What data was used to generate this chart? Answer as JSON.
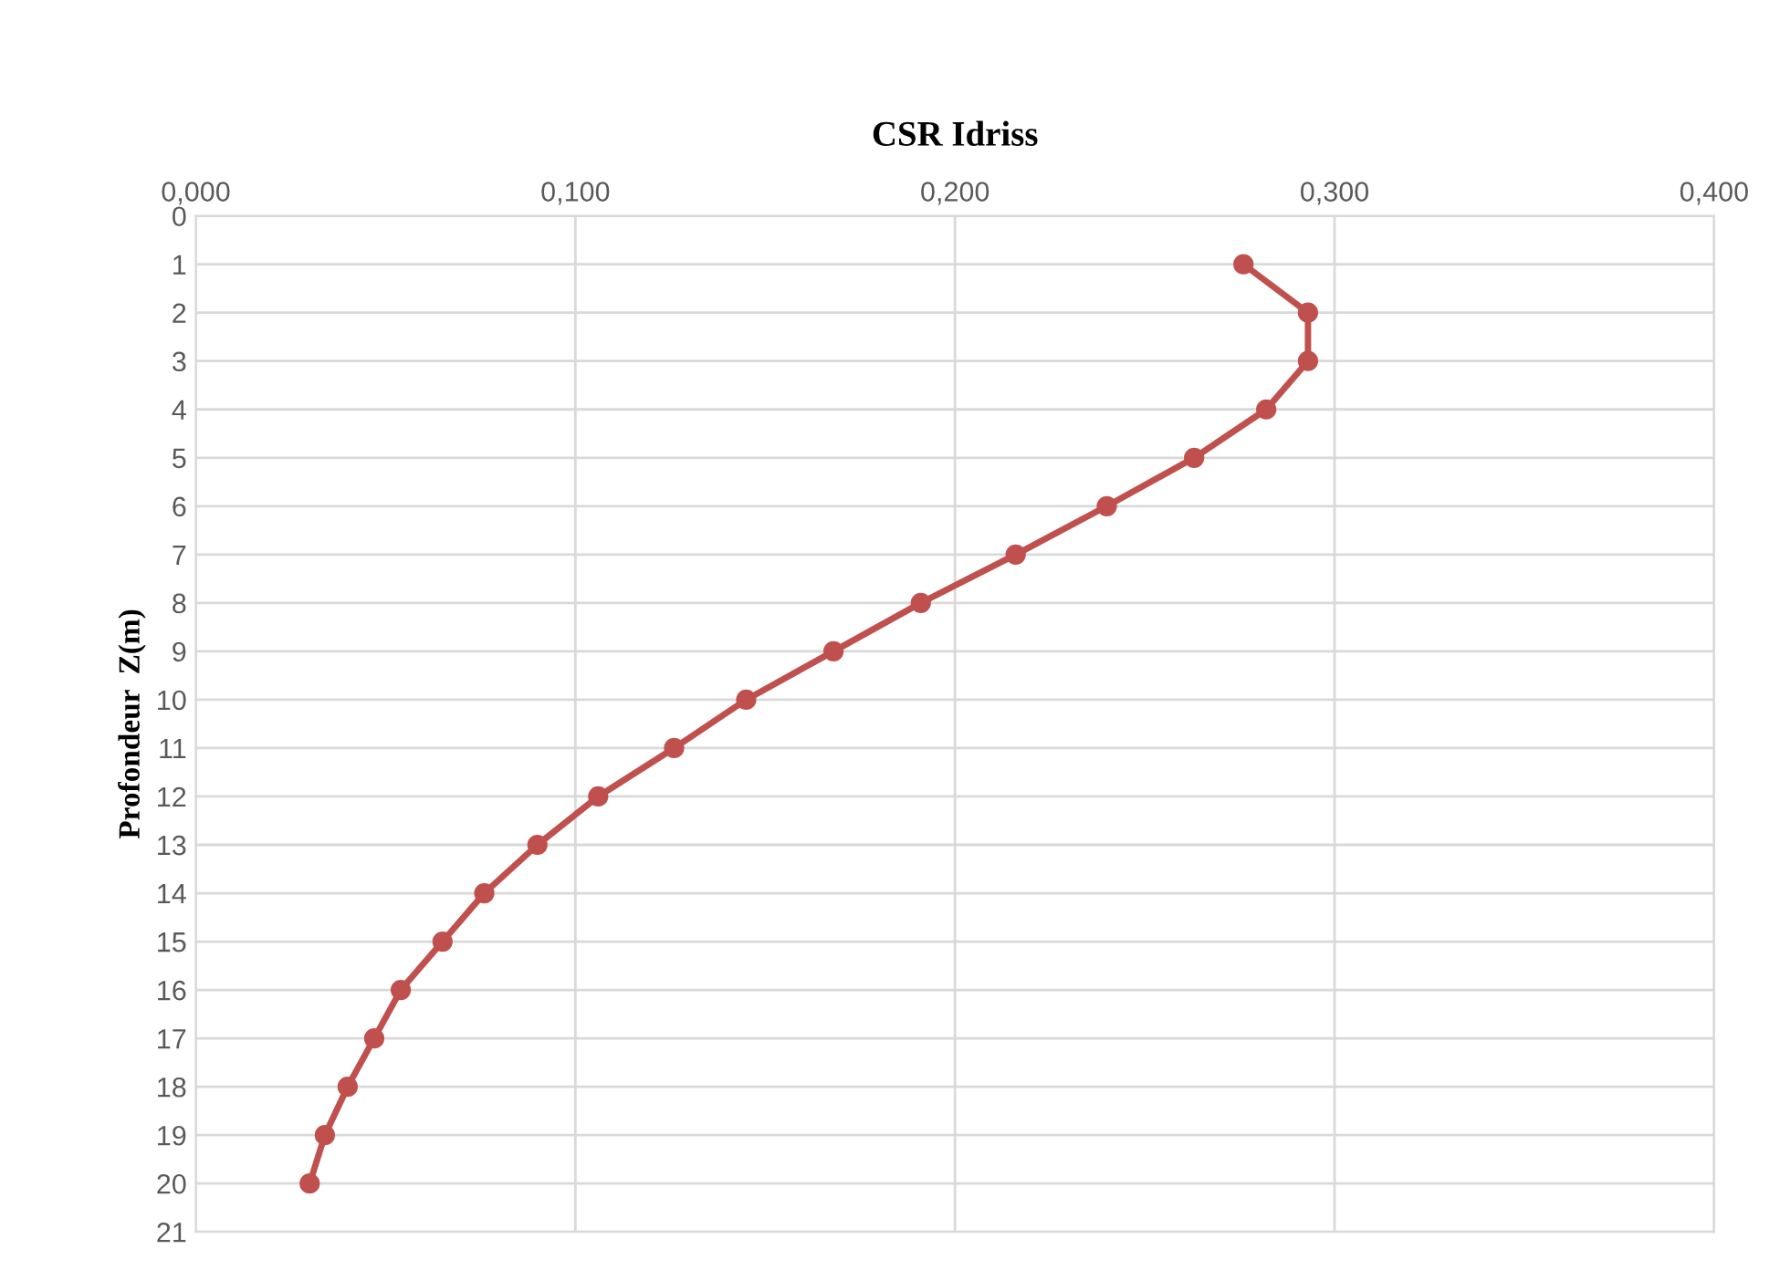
{
  "chart_data": {
    "type": "line",
    "xlabel": "CSR Idriss",
    "ylabel": "Profondeur  Z(m)",
    "series": [
      {
        "color": "#c0504d",
        "x": [
          0.276,
          0.293,
          0.293,
          0.282,
          0.263,
          0.24,
          0.216,
          0.191,
          0.168,
          0.145,
          0.126,
          0.106,
          0.09,
          0.076,
          0.065,
          0.054,
          0.047,
          0.04,
          0.034,
          0.03
        ],
        "values": [
          1,
          2,
          3,
          4,
          5,
          6,
          7,
          8,
          9,
          10,
          11,
          12,
          13,
          14,
          15,
          16,
          17,
          18,
          19,
          20
        ]
      }
    ],
    "xlim": [
      0,
      0.4
    ],
    "xticks": [
      {
        "value": 0,
        "label": "0,000"
      },
      {
        "value": 0.1,
        "label": "0,100"
      },
      {
        "value": 0.2,
        "label": "0,200"
      },
      {
        "value": 0.3,
        "label": "0,300"
      },
      {
        "value": 0.4,
        "label": "0,400"
      }
    ],
    "ylim": [
      21,
      0
    ],
    "yticks": [
      0,
      1,
      2,
      3,
      4,
      5,
      6,
      7,
      8,
      9,
      10,
      11,
      12,
      13,
      14,
      15,
      16,
      17,
      18,
      19,
      20,
      21
    ],
    "grid": true,
    "marker": "circle",
    "line_style": "solid"
  }
}
